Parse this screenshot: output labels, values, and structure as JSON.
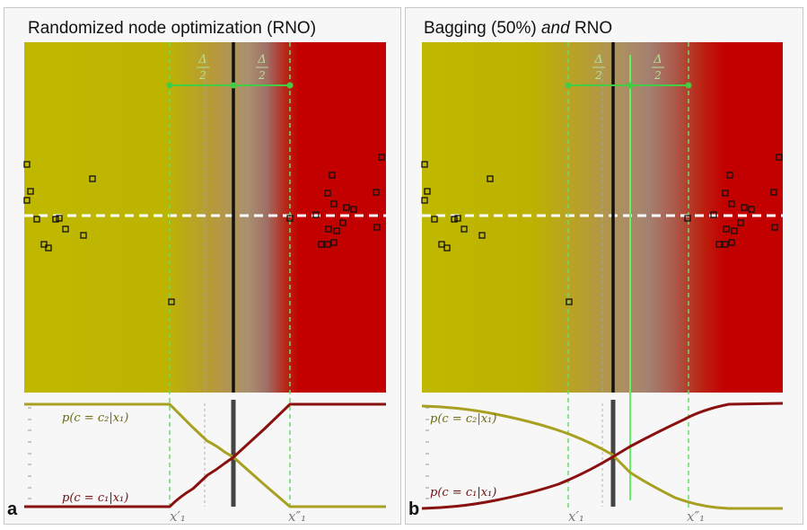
{
  "panels": [
    {
      "id": "a",
      "title_plain": "Randomized node optimization (RNO)",
      "title_pre": "",
      "title_em": "",
      "title_post": "",
      "letter": "a",
      "curve_c2_label": "p(c = c₂|x₁)",
      "curve_c1_label": "p(c = c₁|x₁)",
      "x_left_label": "x′₁",
      "x_right_label": "x″₁",
      "delta_label": "Δ",
      "delta_den": "2"
    },
    {
      "id": "b",
      "title_plain": "",
      "title_pre": "Bagging (50%) ",
      "title_em": "and",
      "title_post": " RNO",
      "letter": "b",
      "curve_c2_label": "p(c = c₂|x₁)",
      "curve_c1_label": "p(c = c₁|x₁)",
      "x_left_label": "x′₁",
      "x_right_label": "x″₁",
      "delta_label": "Δ",
      "delta_den": "2"
    }
  ],
  "colors": {
    "class_yellow": "#c0b800",
    "class_red": "#c20000",
    "threshold": "#111111",
    "guides": "#55dd55",
    "curve_c2": "#a8a020",
    "curve_c1": "#8a1010"
  }
}
